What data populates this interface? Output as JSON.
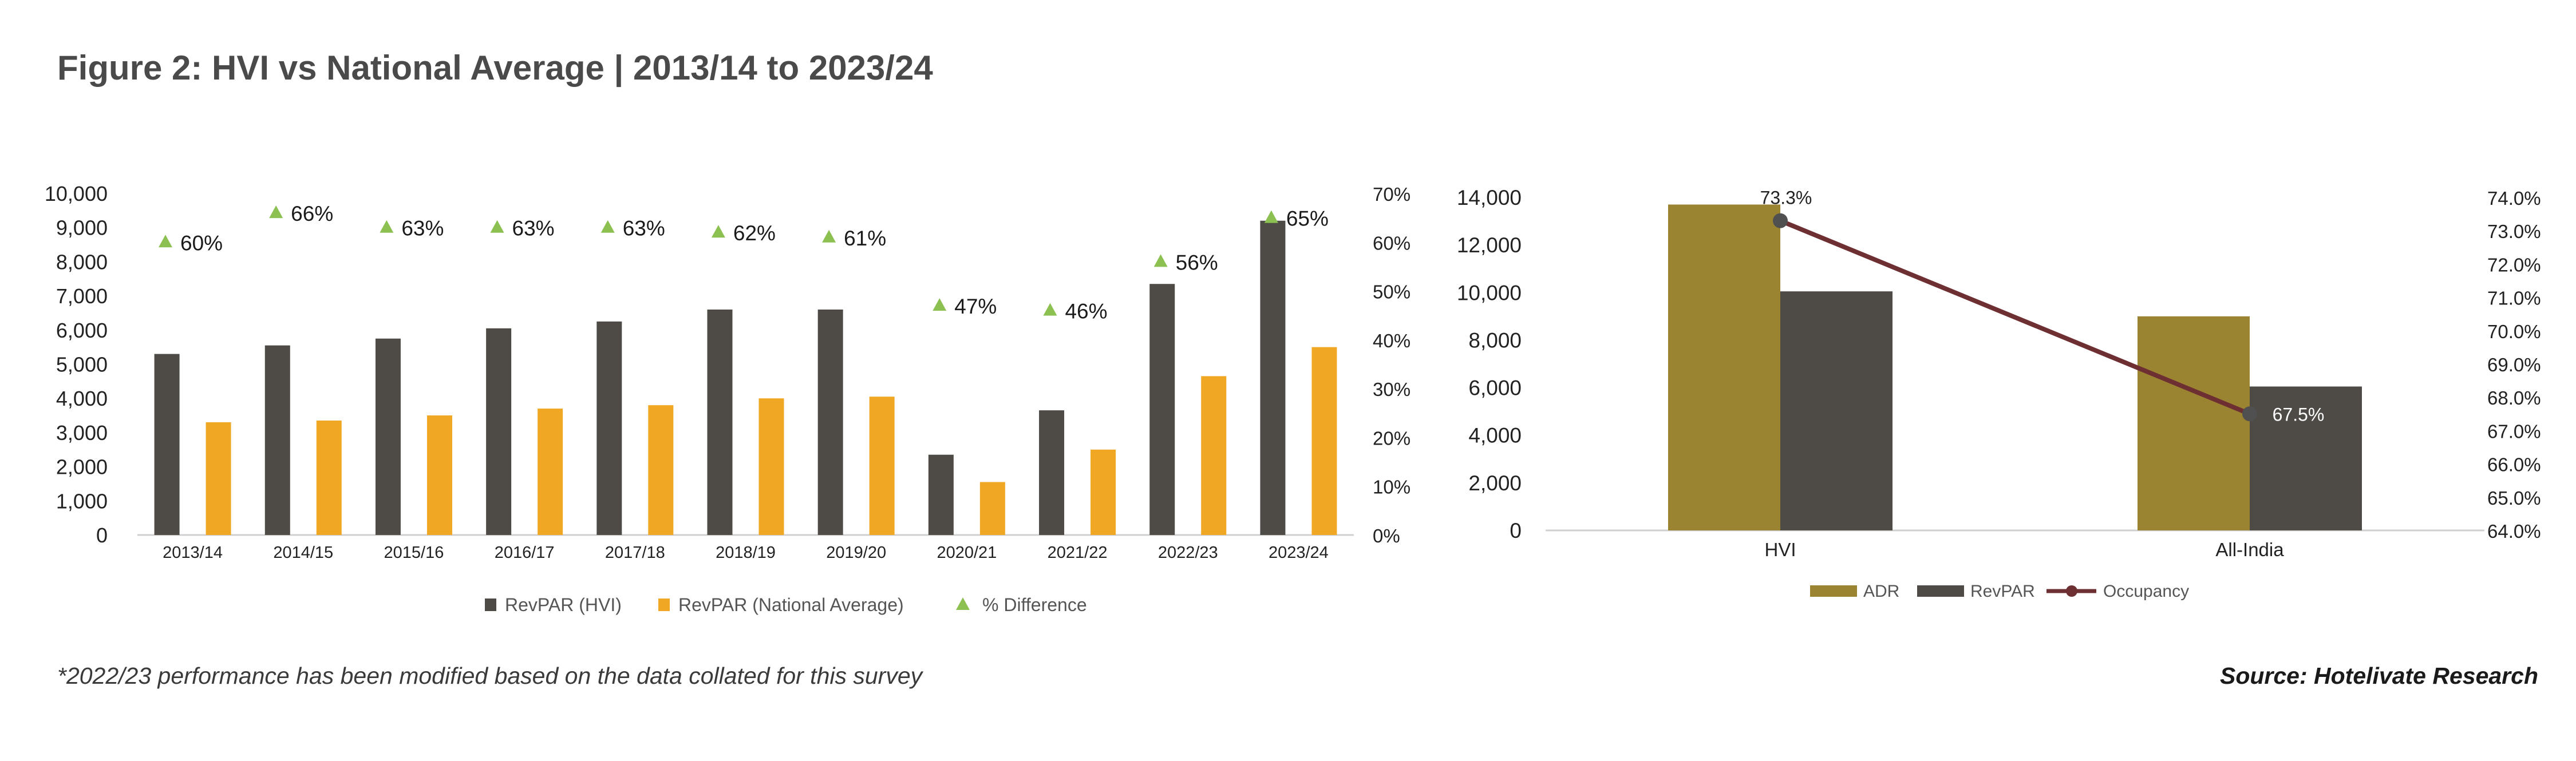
{
  "title": "Figure 2: HVI vs National Average | 2013/14 to 2023/24",
  "footnote": "*2022/23 performance has been modified based on the data collated for this survey",
  "source": "Source: Hotelivate Research",
  "colors": {
    "revpar_hvi": "#4e4b46",
    "revpar_national": "#f0a723",
    "pct_diff": "#8cc152",
    "adr": "#9a8431",
    "occupancy": "#6e2f32"
  },
  "chart_data": [
    {
      "type": "bar",
      "categories": [
        "2013/14",
        "2014/15",
        "2015/16",
        "2016/17",
        "2017/18",
        "2018/19",
        "2019/20",
        "2020/21",
        "2021/22",
        "2022/23",
        "2023/24"
      ],
      "series": [
        {
          "name": "RevPAR (HVI)",
          "values": [
            5300,
            5550,
            5750,
            6050,
            6250,
            6600,
            6600,
            2350,
            3650,
            7350,
            9200
          ]
        },
        {
          "name": "RevPAR (National Average)",
          "values": [
            3300,
            3350,
            3500,
            3700,
            3800,
            4000,
            4050,
            1550,
            2500,
            4650,
            5500
          ]
        },
        {
          "name": "% Difference",
          "axis": "right",
          "marker": "triangle",
          "values": [
            60,
            66,
            63,
            63,
            63,
            62,
            61,
            47,
            46,
            56,
            65
          ],
          "labels": [
            "60%",
            "66%",
            "63%",
            "63%",
            "63%",
            "62%",
            "61%",
            "47%",
            "46%",
            "56%",
            "65%"
          ]
        }
      ],
      "ylim": [
        0,
        10000
      ],
      "yticks": [
        "0",
        "1,000",
        "2,000",
        "3,000",
        "4,000",
        "5,000",
        "6,000",
        "7,000",
        "8,000",
        "9,000",
        "10,000"
      ],
      "y2lim": [
        0,
        70
      ],
      "y2ticks": [
        "0%",
        "10%",
        "20%",
        "30%",
        "40%",
        "50%",
        "60%",
        "70%"
      ],
      "legend": [
        "RevPAR (HVI)",
        "RevPAR (National Average)",
        "% Difference"
      ],
      "legend_position": "bottom"
    },
    {
      "type": "bar",
      "categories": [
        "HVI",
        "All-India"
      ],
      "series": [
        {
          "name": "ADR",
          "values": [
            13700,
            9000
          ]
        },
        {
          "name": "RevPAR",
          "values": [
            10050,
            6050
          ]
        },
        {
          "name": "Occupancy",
          "type": "line",
          "axis": "right",
          "values": [
            73.3,
            67.5
          ],
          "labels": [
            "73.3%",
            "67.5%"
          ]
        }
      ],
      "ylim": [
        0,
        14000
      ],
      "yticks": [
        "0",
        "2,000",
        "4,000",
        "6,000",
        "8,000",
        "10,000",
        "12,000",
        "14,000"
      ],
      "y2lim": [
        64,
        74
      ],
      "y2ticks": [
        "64.0%",
        "65.0%",
        "66.0%",
        "67.0%",
        "68.0%",
        "69.0%",
        "70.0%",
        "71.0%",
        "72.0%",
        "73.0%",
        "74.0%"
      ],
      "legend": [
        "ADR",
        "RevPAR",
        "Occupancy"
      ],
      "legend_position": "bottom"
    }
  ]
}
